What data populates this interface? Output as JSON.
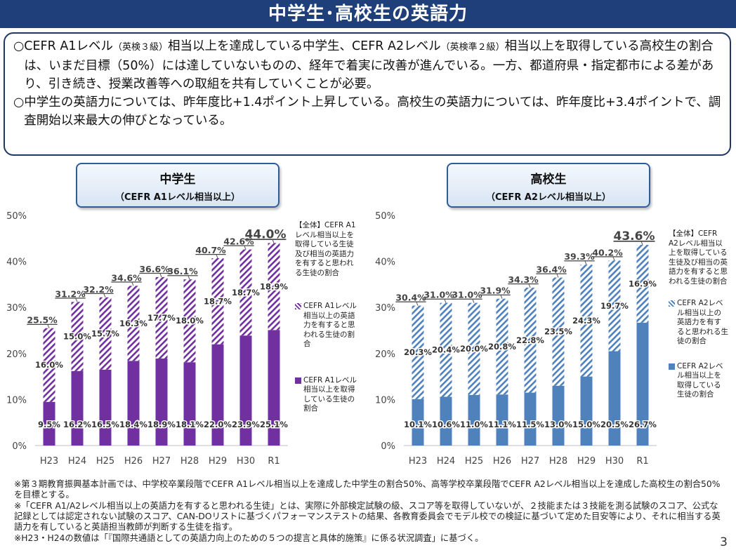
{
  "title": "中学生･高校生の英語力",
  "summary": {
    "p1_mark": "○",
    "p1_a": "CEFR A1レベル",
    "p1_b": "（英検３級）",
    "p1_c": "相当以上を達成している中学生、CEFR A2レベル",
    "p1_d": "（英検準２級）",
    "p1_e": "相当以上を取得している高校生の割合は、いまだ目標（50%）には達していないものの、経年で着実に改善が進んでいる。一方、都道府県・指定都市による差があり、引き続き、授業改善等への取組を共有していくことが必要。",
    "p2_mark": "○",
    "p2": "中学生の英語力については、昨年度比+1.4ポイント上昇している。高校生の英語力については、昨年度比+3.4ポイントで、調査開始以来最大の伸びとなっている。"
  },
  "colors": {
    "junior_main": "#7030a0",
    "senior_main": "#4f81bd",
    "title_bar": "#1f3f7a",
    "box_border": "#1f3864"
  },
  "chart_data": [
    {
      "type": "bar",
      "stacked": true,
      "title": "中学生",
      "subtitle": "（CEFR A1レベル相当以上）",
      "categories": [
        "H23",
        "H24",
        "H25",
        "H26",
        "H27",
        "H28",
        "H29",
        "H30",
        "R1"
      ],
      "ylim": [
        0,
        50
      ],
      "yticks": [
        "0%",
        "10%",
        "20%",
        "30%",
        "40%",
        "50%"
      ],
      "series": [
        {
          "name": "CEFR A1レベル相当以上を取得している生徒の割合",
          "values": [
            9.5,
            16.2,
            16.5,
            18.4,
            18.9,
            18.1,
            22.0,
            23.9,
            25.1
          ],
          "labels": [
            "9.5%",
            "16.2%",
            "16.5%",
            "18.4%",
            "18.9%",
            "18.1%",
            "22.0%",
            "23.9%",
            "25.1%"
          ],
          "pattern": "solid"
        },
        {
          "name": "CEFR A1レベル相当以上の英語力を有すると思われる生徒の割合",
          "values": [
            16.0,
            15.0,
            15.7,
            16.3,
            17.7,
            18.0,
            18.7,
            18.7,
            18.9
          ],
          "labels": [
            "16.0%",
            "15.0%",
            "15.7%",
            "16.3%",
            "17.7%",
            "18.0%",
            "18.7%",
            "18.7%",
            "18.9%"
          ],
          "pattern": "hatch"
        }
      ],
      "totals": [
        25.5,
        31.2,
        32.2,
        34.6,
        36.6,
        36.1,
        40.7,
        42.6,
        44.0
      ],
      "total_labels": [
        "25.5%",
        "31.2%",
        "32.2%",
        "34.6%",
        "36.6%",
        "36.1%",
        "40.7%",
        "42.6%",
        "44.0%"
      ],
      "legend": {
        "head": "【全体】CEFR A1レベル相当以上を取得している生徒及び相当の英語力を有すると思われる生徒の割合",
        "hatch": "CEFR A1レベル相当以上の英語力を有すると思われる生徒の割合",
        "solid": "CEFR A1レベル相当以上を取得している生徒の割合"
      }
    },
    {
      "type": "bar",
      "stacked": true,
      "title": "高校生",
      "subtitle": "（CEFR A2レベル相当以上）",
      "categories": [
        "H23",
        "H24",
        "H25",
        "H26",
        "H27",
        "H28",
        "H29",
        "H30",
        "R1"
      ],
      "ylim": [
        0,
        50
      ],
      "yticks": [
        "0%",
        "10%",
        "20%",
        "30%",
        "40%",
        "50%"
      ],
      "series": [
        {
          "name": "CEFR A2レベル相当以上を取得している生徒の割合",
          "values": [
            10.1,
            10.6,
            11.0,
            11.1,
            11.5,
            13.0,
            15.0,
            20.5,
            26.7
          ],
          "labels": [
            "10.1%",
            "10.6%",
            "11.0%",
            "11.1%",
            "11.5%",
            "13.0%",
            "15.0%",
            "20.5%",
            "26.7%"
          ],
          "pattern": "solid"
        },
        {
          "name": "CEFR A2レベル相当以上の英語力を有すると思われる生徒の割合",
          "values": [
            20.3,
            20.4,
            20.0,
            20.8,
            22.8,
            23.5,
            24.3,
            19.7,
            16.9
          ],
          "labels": [
            "20.3%",
            "20.4%",
            "20.0%",
            "20.8%",
            "22.8%",
            "23.5%",
            "24.3%",
            "19.7%",
            "16.9%"
          ],
          "pattern": "hatch"
        }
      ],
      "totals": [
        30.4,
        31.0,
        31.0,
        31.9,
        34.3,
        36.4,
        39.3,
        40.2,
        43.6
      ],
      "total_labels": [
        "30.4%",
        "31.0%",
        "31.0%",
        "31.9%",
        "34.3%",
        "36.4%",
        "39.3%",
        "40.2%",
        "43.6%"
      ],
      "legend": {
        "head": "【全体】CEFR A2レベル相当以上を取得している生徒及び相当の英語力を有すると思われる生徒の割合",
        "hatch": "CEFR A2レベル相当以上の英語力を有すると思われる生徒の割合",
        "solid": "CEFR A2レベル相当以上を取得している生徒の割合"
      }
    }
  ],
  "footnotes": [
    "※第３期教育振興基本計画では、中学校卒業段階でCEFR A1レベル相当以上を達成した中学生の割合50%、高等学校卒業段階でCEFR A2レベル相当以上を達成した高校生の割合50%を目標とする。",
    "※「CEFR A1/A2レベル相当以上の英語力を有すると思われる生徒」とは、実際に外部検定試験の級、スコア等を取得していないが、２技能または３技能を測る試験のスコア、公式な記録としては認定されない試験のスコア、CAN-DOリストに基づくパフォーマンステストの結果、各教育委員会でモデル校での検証に基づいて定めた目安等により、それに相当する英語力を有していると英語担当教師が判断する生徒を指す。",
    "※H23・H24の数値は「『国際共通語としての英語力向上のための５つの提言と具体的施策』に係る状況調査」に基づく。"
  ],
  "page_number": "3"
}
